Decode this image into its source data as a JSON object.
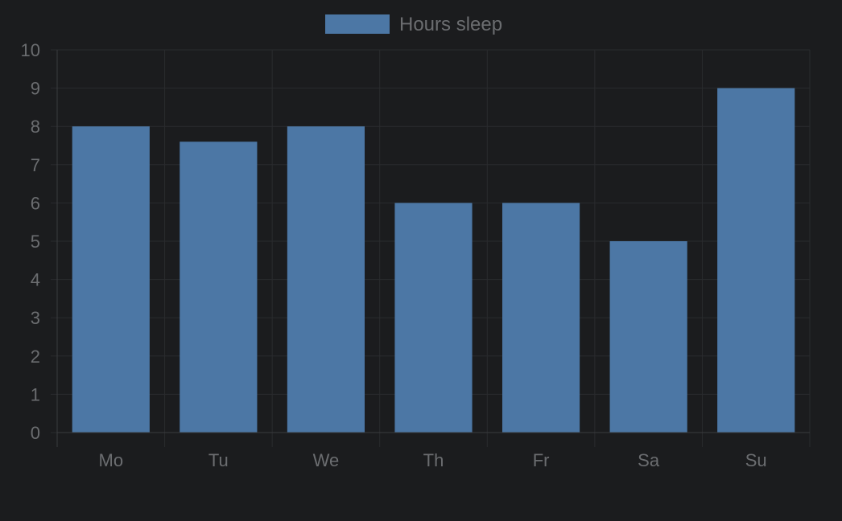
{
  "colors": {
    "background": "#1b1c1e",
    "bar": "#4c77a5",
    "grid": "#2a2b2e",
    "axis": "#3a3b3e",
    "text": "#6b6d70"
  },
  "chart_data": {
    "type": "bar",
    "categories": [
      "Mo",
      "Tu",
      "We",
      "Th",
      "Fr",
      "Sa",
      "Su"
    ],
    "series": [
      {
        "name": "Hours sleep",
        "values": [
          8,
          7.6,
          8,
          6,
          6,
          5,
          9
        ]
      }
    ],
    "ylim": [
      0,
      10
    ],
    "yticks": [
      "0",
      "1",
      "2",
      "3",
      "4",
      "5",
      "6",
      "7",
      "8",
      "9",
      "10"
    ],
    "grid": true,
    "legend_position": "top-center"
  }
}
